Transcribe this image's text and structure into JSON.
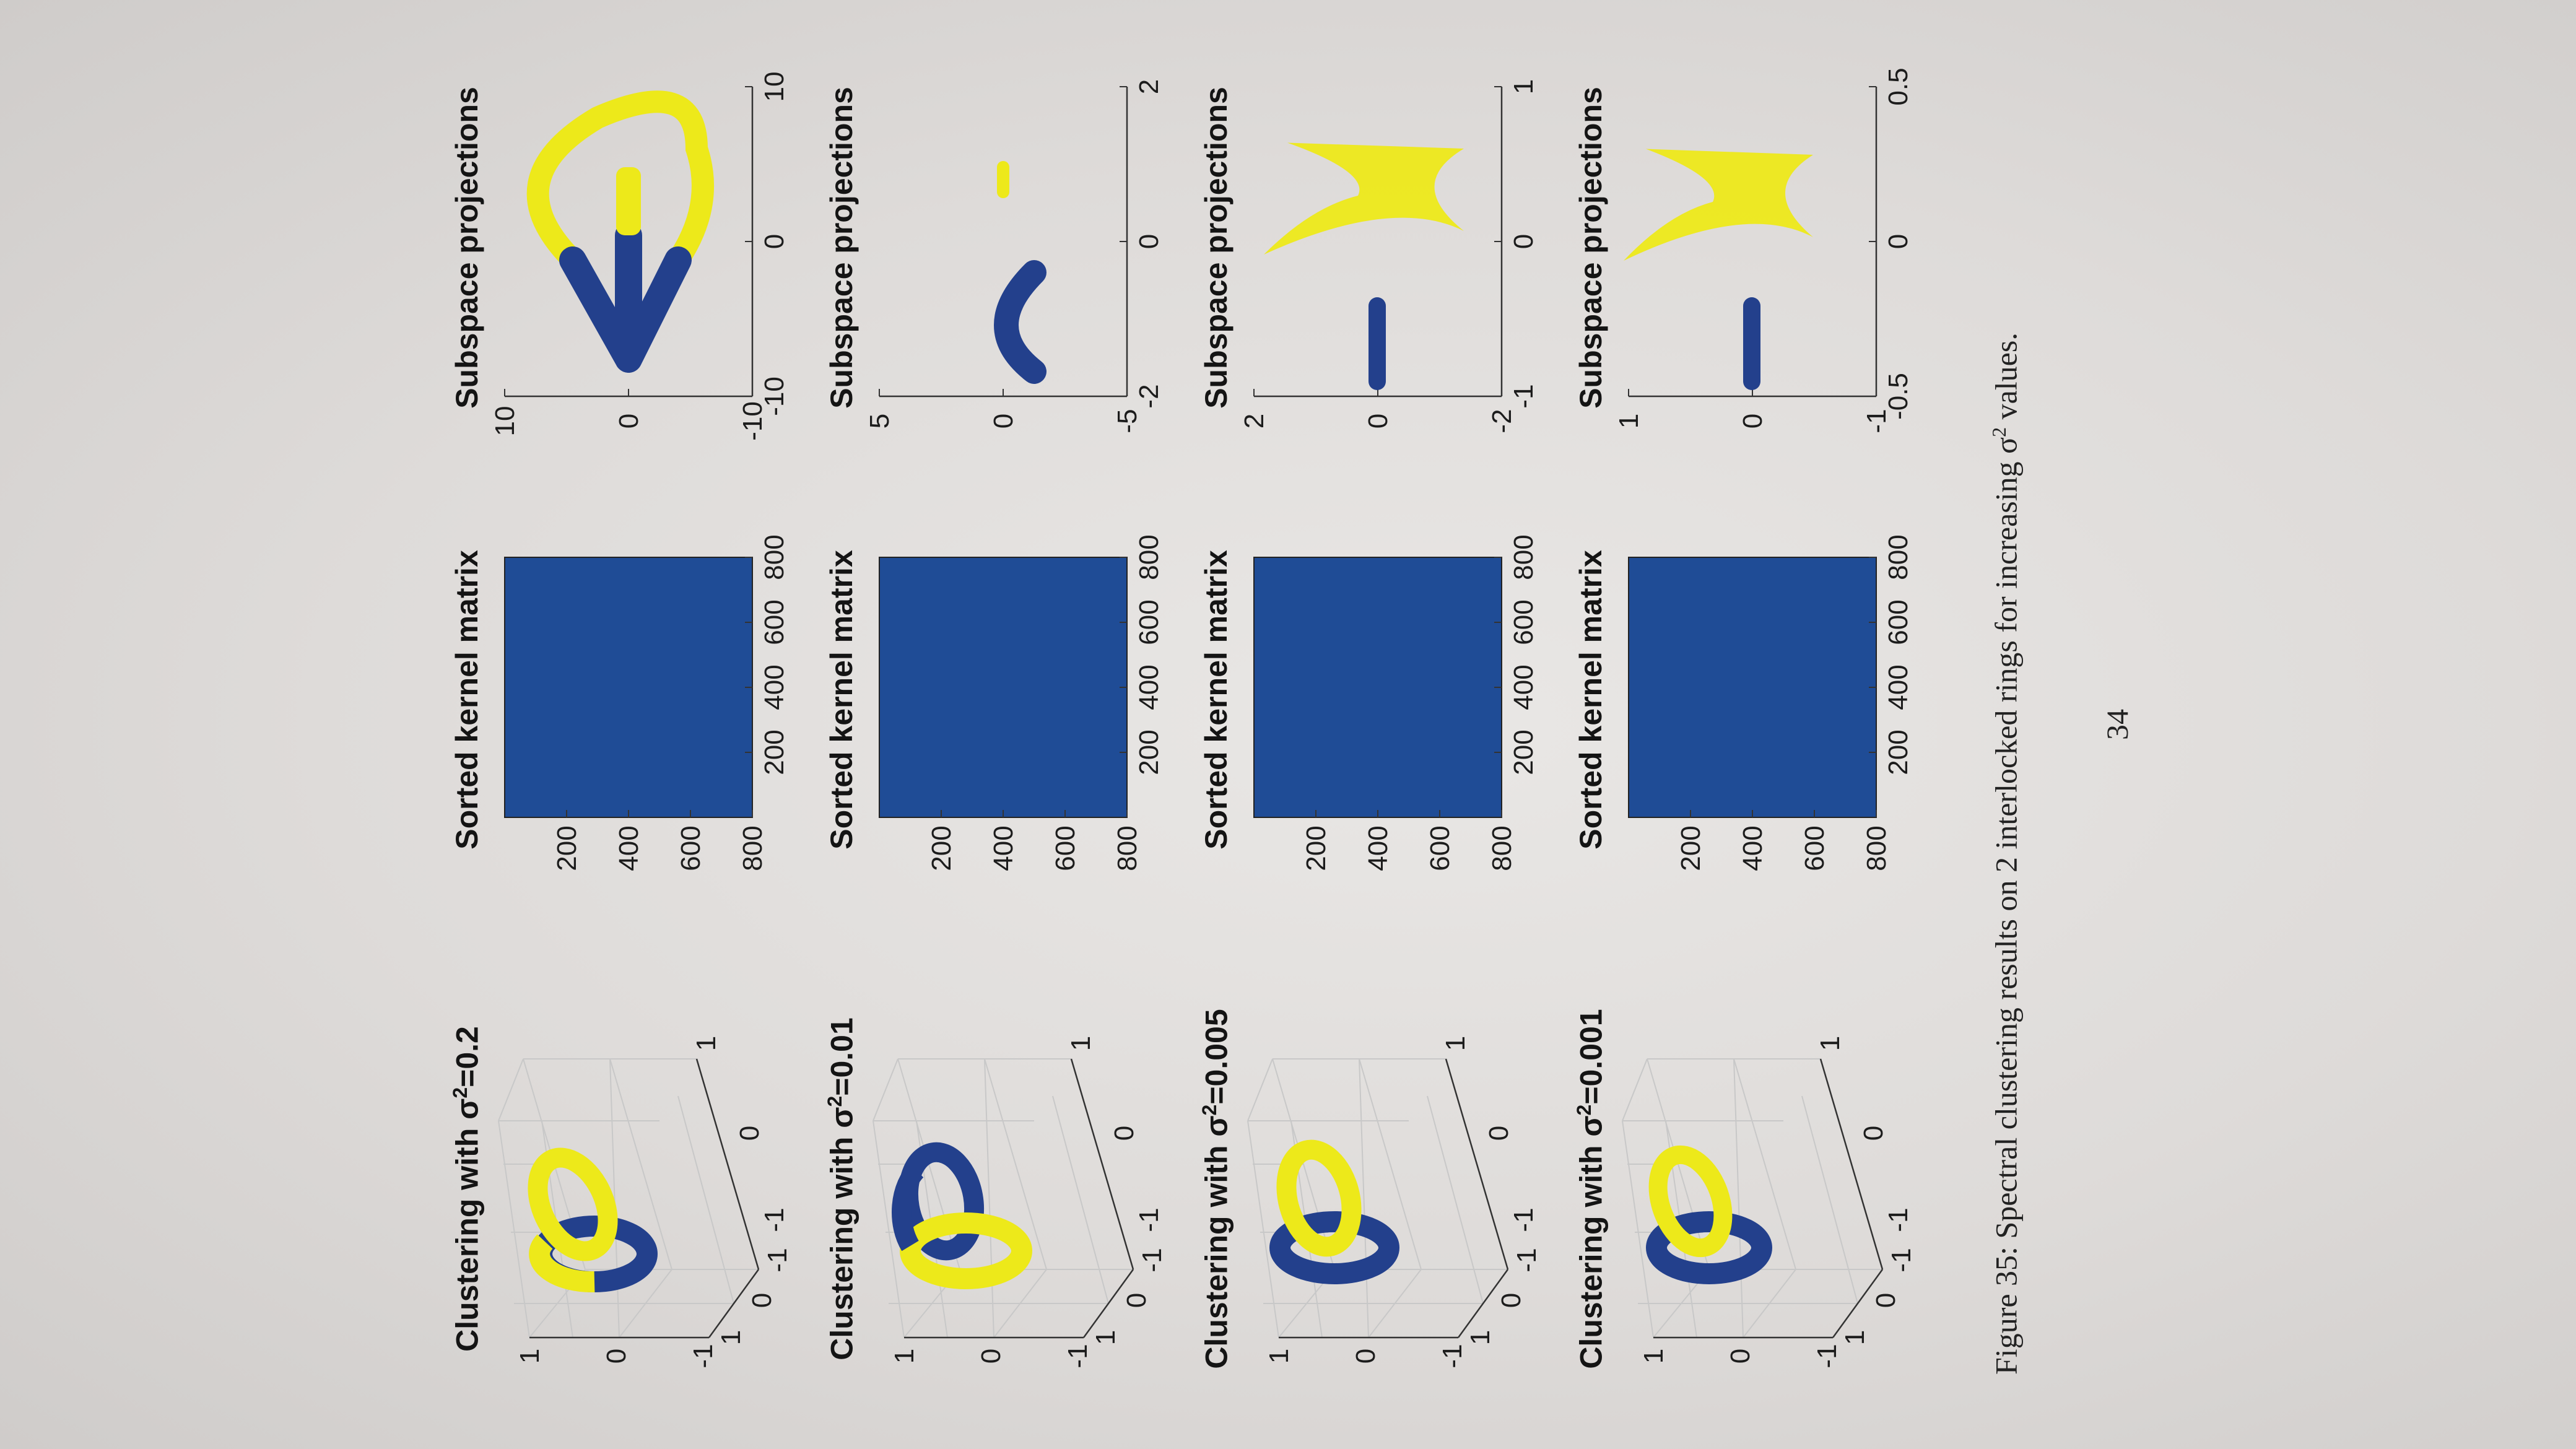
{
  "rows": [
    {
      "cluster_title": "Clustering with σ",
      "cluster_title_tail": "=0.001",
      "kernel_title": "Sorted kernel matrix",
      "proj_title": "Subspace projections",
      "proj_x_ticks": [
        "-0.5",
        "0",
        "0.5"
      ],
      "proj_y_ticks": [
        "-1",
        "0",
        "1"
      ]
    },
    {
      "cluster_title": "Clustering with σ",
      "cluster_title_tail": "=0.005",
      "kernel_title": "Sorted kernel matrix",
      "proj_title": "Subspace projections",
      "proj_x_ticks": [
        "-1",
        "0",
        "1"
      ],
      "proj_y_ticks": [
        "-2",
        "0",
        "2"
      ]
    },
    {
      "cluster_title": "Clustering with σ",
      "cluster_title_tail": "=0.01",
      "kernel_title": "Sorted kernel matrix",
      "proj_title": "Subspace projections",
      "proj_x_ticks": [
        "-2",
        "0",
        "2"
      ],
      "proj_y_ticks": [
        "-5",
        "0",
        "5"
      ]
    },
    {
      "cluster_title": "Clustering with σ",
      "cluster_title_tail": "=0.2",
      "kernel_title": "Sorted kernel matrix",
      "proj_title": "Subspace projections",
      "proj_x_ticks": [
        "-10",
        "0",
        "10"
      ],
      "proj_y_ticks": [
        "-10",
        "0",
        "10"
      ]
    }
  ],
  "cluster_axis_ticks": {
    "z": [
      "-1",
      "0",
      "1"
    ],
    "x": [
      "1",
      "0",
      "-1"
    ],
    "y": [
      "-1",
      "0",
      "1"
    ]
  },
  "kernel_ticks": [
    "200",
    "400",
    "600",
    "800"
  ],
  "caption": {
    "prefix": "Figure 35:  Spectral clustering results on 2 interlocked rings for increasing σ",
    "suffix": " values."
  },
  "page_number": "34",
  "colors": {
    "cluster_blue": "#23408c",
    "cluster_yellow": "#ede91a",
    "kernel_fill": "#1f4c96"
  }
}
